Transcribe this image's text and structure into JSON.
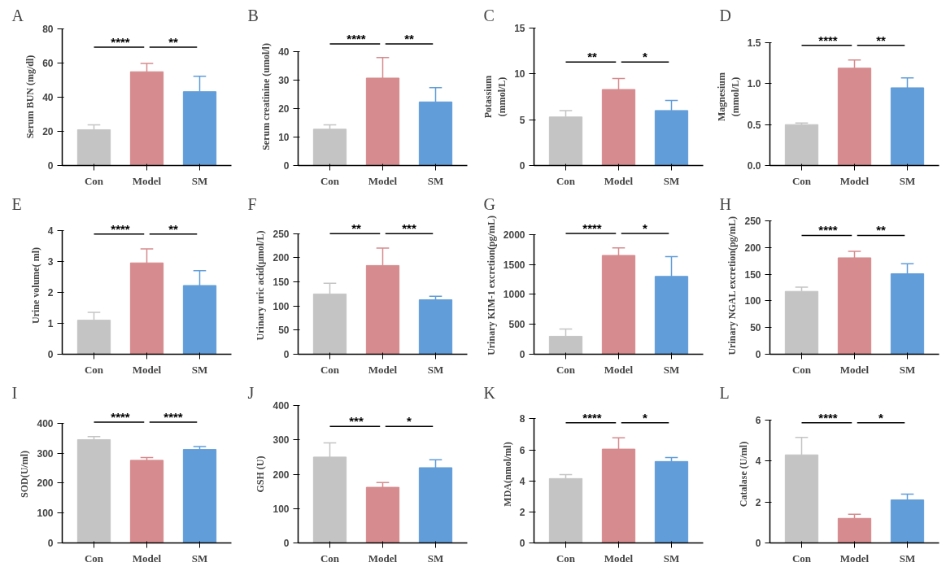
{
  "chart_data": [
    {
      "type": "bar",
      "title": "A",
      "ylabel": "Serum BUN (mg/dl)",
      "categories": [
        "Con",
        "Model",
        "SM"
      ],
      "values": [
        21,
        55,
        43.3
      ],
      "colors": [
        "#c4c4c4",
        "#d68b8e",
        "#619dd9"
      ],
      "errors": [
        [
          21,
          23.8
        ],
        [
          55,
          59.8
        ],
        [
          43.3,
          52.3
        ]
      ],
      "ylim": [
        0,
        80
      ],
      "yticks": [
        0,
        20,
        40,
        60,
        80
      ],
      "annotations": [
        "****",
        "**"
      ]
    },
    {
      "type": "bar",
      "title": "B",
      "ylabel": "Serum creatinine (umol/l)",
      "categories": [
        "Con",
        "Model",
        "SM"
      ],
      "values": [
        12.8,
        30.8,
        22.4
      ],
      "colors": [
        "#c4c4c4",
        "#d68b8e",
        "#619dd9"
      ],
      "errors": [
        [
          12.8,
          14.3
        ],
        [
          30.8,
          38
        ],
        [
          22.4,
          27.4
        ]
      ],
      "ylim": [
        0,
        40
      ],
      "yticks": [
        0,
        10,
        20,
        30,
        40
      ],
      "annotations": [
        "****",
        "**"
      ]
    },
    {
      "type": "bar",
      "title": "C",
      "ylabel": "Potassium\n(mmol/L)",
      "categories": [
        "Con",
        "Model",
        "SM"
      ],
      "values": [
        5.3,
        8.3,
        6.0
      ],
      "colors": [
        "#c4c4c4",
        "#d68b8e",
        "#619dd9"
      ],
      "errors": [
        [
          5.3,
          6.0
        ],
        [
          8.3,
          9.5
        ],
        [
          6.0,
          7.1
        ]
      ],
      "ylim": [
        0,
        15
      ],
      "yticks": [
        0,
        5,
        10,
        15
      ],
      "annotations": [
        "**",
        "*"
      ]
    },
    {
      "type": "bar",
      "title": "D",
      "ylabel": "Magnesium\n(mmol/L)",
      "categories": [
        "Con",
        "Model",
        "SM"
      ],
      "values": [
        0.5,
        1.19,
        0.95
      ],
      "colors": [
        "#c4c4c4",
        "#d68b8e",
        "#619dd9"
      ],
      "errors": [
        [
          0.5,
          0.52
        ],
        [
          1.19,
          1.29
        ],
        [
          0.95,
          1.07
        ]
      ],
      "ylim": [
        0,
        1.5
      ],
      "yticks": [
        {
          "value": 0,
          "label": "0.0"
        },
        {
          "value": 0.5,
          "label": "0.5"
        },
        {
          "value": 1,
          "label": "1.0"
        },
        {
          "value": 1.5,
          "label": "1.5"
        }
      ],
      "annotations": [
        "****",
        "**"
      ]
    },
    {
      "type": "bar",
      "title": "E",
      "ylabel": "Urine volume( ml)",
      "categories": [
        "Con",
        "Model",
        "SM"
      ],
      "values": [
        1.1,
        2.95,
        2.22
      ],
      "colors": [
        "#c4c4c4",
        "#d68b8e",
        "#619dd9"
      ],
      "errors": [
        [
          1.1,
          1.35
        ],
        [
          2.95,
          3.4
        ],
        [
          2.22,
          2.7
        ]
      ],
      "ylim": [
        0,
        4
      ],
      "yticks": [
        0,
        1,
        2,
        3,
        4
      ],
      "annotations": [
        "****",
        "**"
      ]
    },
    {
      "type": "bar",
      "title": "F",
      "ylabel": "Urinary uric acid(μmol/L)",
      "categories": [
        "Con",
        "Model",
        "SM"
      ],
      "values": [
        125,
        184,
        113
      ],
      "colors": [
        "#c4c4c4",
        "#d68b8e",
        "#619dd9"
      ],
      "errors": [
        [
          125,
          147
        ],
        [
          184,
          220
        ],
        [
          113,
          120
        ]
      ],
      "ylim": [
        0,
        250
      ],
      "yticks": [
        0,
        50,
        100,
        150,
        200,
        250
      ],
      "annotations": [
        "**",
        "***"
      ]
    },
    {
      "type": "bar",
      "title": "G",
      "ylabel": "Urinary KIM-1 excretion(pg/mL)",
      "categories": [
        "Con",
        "Model",
        "SM"
      ],
      "values": [
        300,
        1650,
        1300
      ],
      "colors": [
        "#c4c4c4",
        "#d68b8e",
        "#619dd9"
      ],
      "errors": [
        [
          300,
          420
        ],
        [
          1650,
          1775
        ],
        [
          1300,
          1630
        ]
      ],
      "ylim": [
        0,
        2000
      ],
      "yticks": [
        0,
        500,
        1000,
        1500,
        2000
      ],
      "annotations": [
        "****",
        "*"
      ]
    },
    {
      "type": "bar",
      "title": "H",
      "ylabel": "Urinary NGAL excretion(pg/mL)",
      "categories": [
        "Con",
        "Model",
        "SM"
      ],
      "values": [
        118,
        181,
        151
      ],
      "colors": [
        "#c4c4c4",
        "#d68b8e",
        "#619dd9"
      ],
      "errors": [
        [
          118,
          126
        ],
        [
          181,
          193
        ],
        [
          151,
          170
        ]
      ],
      "ylim": [
        0,
        250
      ],
      "yticks": [
        0,
        50,
        100,
        150,
        200,
        250
      ],
      "annotations": [
        "****",
        "**"
      ]
    },
    {
      "type": "bar",
      "title": "I",
      "ylabel": "SOD(U/ml)",
      "categories": [
        "Con",
        "Model",
        "SM"
      ],
      "values": [
        345,
        276,
        312
      ],
      "colors": [
        "#c4c4c4",
        "#d68b8e",
        "#619dd9"
      ],
      "errors": [
        [
          345,
          355
        ],
        [
          276,
          285
        ],
        [
          312,
          322
        ]
      ],
      "ylim": [
        0,
        400
      ],
      "yticks": [
        0,
        100,
        200,
        300,
        400
      ],
      "annotations": [
        "****",
        "****"
      ]
    },
    {
      "type": "bar",
      "title": "J",
      "ylabel": "GSH (U)",
      "categories": [
        "Con",
        "Model",
        "SM"
      ],
      "values": [
        250,
        162,
        219
      ],
      "colors": [
        "#c4c4c4",
        "#d68b8e",
        "#619dd9"
      ],
      "errors": [
        [
          250,
          291
        ],
        [
          162,
          176
        ],
        [
          219,
          242
        ]
      ],
      "ylim": [
        0,
        400
      ],
      "yticks": [
        0,
        100,
        200,
        300,
        400
      ],
      "annotations": [
        "***",
        "*"
      ]
    },
    {
      "type": "bar",
      "title": "K",
      "ylabel": "MDA(nmol/ml)",
      "categories": [
        "Con",
        "Model",
        "SM"
      ],
      "values": [
        4.15,
        6.05,
        5.25
      ],
      "colors": [
        "#c4c4c4",
        "#d68b8e",
        "#619dd9"
      ],
      "errors": [
        [
          4.15,
          4.4
        ],
        [
          6.05,
          6.78
        ],
        [
          5.25,
          5.5
        ]
      ],
      "ylim": [
        0,
        8
      ],
      "yticks": [
        0,
        2,
        4,
        6,
        8
      ],
      "annotations": [
        "****",
        "*"
      ]
    },
    {
      "type": "bar",
      "title": "L",
      "ylabel": "Catalase (U/ml)",
      "categories": [
        "Con",
        "Model",
        "SM"
      ],
      "values": [
        4.3,
        1.2,
        2.1
      ],
      "colors": [
        "#c4c4c4",
        "#d68b8e",
        "#619dd9"
      ],
      "errors": [
        [
          4.3,
          5.15
        ],
        [
          1.2,
          1.4
        ],
        [
          2.1,
          2.38
        ]
      ],
      "ylim": [
        0,
        6
      ],
      "yticks": [
        0,
        2,
        4,
        6
      ],
      "annotations": [
        "****",
        "*"
      ]
    }
  ]
}
